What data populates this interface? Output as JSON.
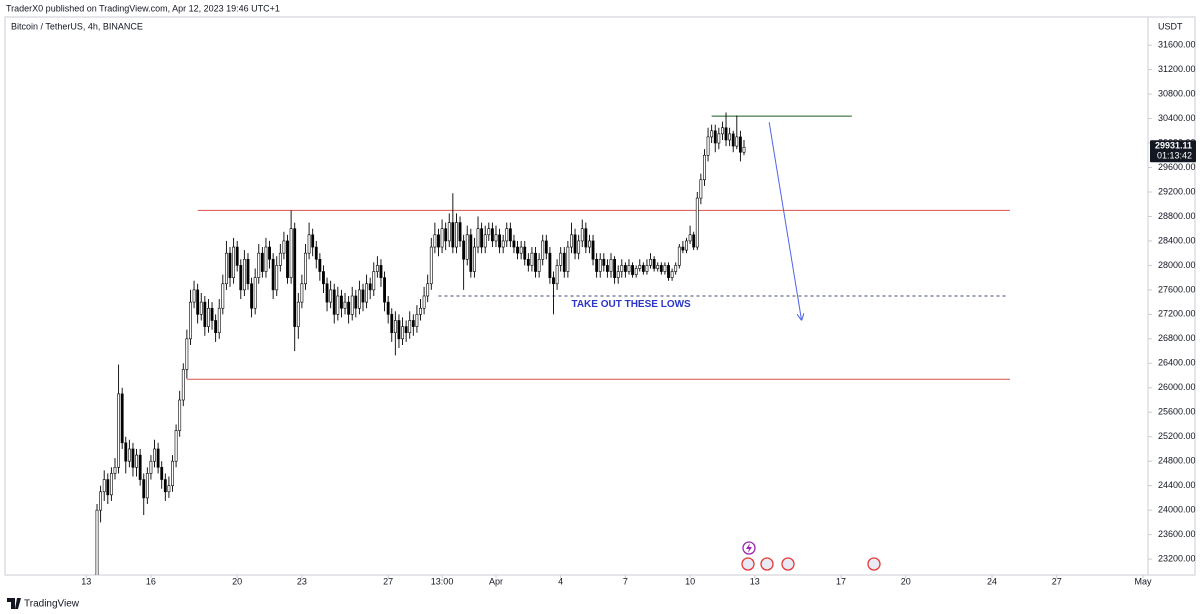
{
  "publisher": "TraderX0 published on TradingView.com, Apr 12, 2023 19:46 UTC+1",
  "brand": "TradingView",
  "chart_data": {
    "type": "candlestick",
    "title": "Bitcoin / TetherUS, 4h, BINANCE",
    "currency": "USDT",
    "countdown": "01:13:42",
    "up_color": "#ffffff",
    "down_color": "#000000",
    "edge_color": "#000000",
    "grid": false,
    "ylim": [
      22940,
      32060
    ],
    "xlim": [
      -25.6,
      292.4
    ],
    "yticks": [
      {
        "value": 23200,
        "label": "23200.00"
      },
      {
        "value": 23600,
        "label": "23600.00"
      },
      {
        "value": 24000,
        "label": "24000.00"
      },
      {
        "value": 24400,
        "label": "24400.00"
      },
      {
        "value": 24800,
        "label": "24800.00"
      },
      {
        "value": 25200,
        "label": "25200.00"
      },
      {
        "value": 25600,
        "label": "25600.00"
      },
      {
        "value": 26000,
        "label": "26000.00"
      },
      {
        "value": 26400,
        "label": "26400.00"
      },
      {
        "value": 26800,
        "label": "26800.00"
      },
      {
        "value": 27200,
        "label": "27200.00"
      },
      {
        "value": 27600,
        "label": "27600.00"
      },
      {
        "value": 28000,
        "label": "28000.00"
      },
      {
        "value": 28400,
        "label": "28400.00"
      },
      {
        "value": 28800,
        "label": "28800.00"
      },
      {
        "value": 29200,
        "label": "29200.00"
      },
      {
        "value": 29600,
        "label": "29600.00"
      },
      {
        "value": 30000,
        "label": "30000.00"
      },
      {
        "value": 30400,
        "label": "30400.00"
      },
      {
        "value": 30800,
        "label": "30800.00"
      },
      {
        "value": 31200,
        "label": "31200.00"
      },
      {
        "value": 31600,
        "label": "31600.00"
      }
    ],
    "xticks": [
      {
        "value": -3,
        "label": "13"
      },
      {
        "value": 15,
        "label": "16"
      },
      {
        "value": 39,
        "label": "20"
      },
      {
        "value": 57,
        "label": "23"
      },
      {
        "value": 81,
        "label": "27"
      },
      {
        "value": 96,
        "label": "13:00"
      },
      {
        "value": 111,
        "label": "Apr"
      },
      {
        "value": 129,
        "label": "4"
      },
      {
        "value": 147,
        "label": "7"
      },
      {
        "value": 165,
        "label": "10"
      },
      {
        "value": 183,
        "label": "13"
      },
      {
        "value": 207,
        "label": "17"
      },
      {
        "value": 225,
        "label": "20"
      },
      {
        "value": 249,
        "label": "24"
      },
      {
        "value": 267,
        "label": "27"
      },
      {
        "value": 291,
        "label": "May"
      }
    ],
    "open": [
      22300,
      24000,
      24300,
      24500,
      24250,
      24600,
      24700,
      25900,
      25100,
      24800,
      25000,
      24700,
      24900,
      24500,
      24200,
      24600,
      24800,
      25000,
      24700,
      24500,
      24300,
      24400,
      24800,
      25300,
      25800,
      26300,
      26800,
      27400,
      27600,
      27200,
      27400,
      27000,
      27300,
      27100,
      26900,
      27300,
      27700,
      28200,
      27800,
      28300,
      28000,
      27600,
      28100,
      27700,
      27300,
      27800,
      28200,
      27900,
      28300,
      28100,
      27600,
      28000,
      28200,
      28400,
      27800,
      28600,
      27000,
      27400,
      27700,
      28200,
      28500,
      28300,
      28100,
      27900,
      27700,
      27400,
      27600,
      27200,
      27500,
      27300,
      27400,
      27200,
      27500,
      27300,
      27600,
      27400,
      27700,
      27600,
      27900,
      28000,
      27800,
      27400,
      27200,
      26900,
      27100,
      26800,
      27000,
      26900,
      27100,
      27000,
      27200,
      27300,
      27500,
      27700,
      28300,
      28500,
      28300,
      28600,
      28400,
      28700,
      28300,
      28700,
      28400,
      28100,
      28500,
      27900,
      28300,
      28600,
      28300,
      28500,
      28600,
      28400,
      28500,
      28300,
      28400,
      28600,
      28400,
      28300,
      28200,
      28300,
      28100,
      28000,
      28200,
      27900,
      28100,
      28400,
      28200,
      27800,
      27700,
      28000,
      28200,
      27900,
      28300,
      28500,
      28200,
      28400,
      28600,
      28300,
      28400,
      28100,
      27900,
      28100,
      28000,
      27900,
      28100,
      27800,
      27900,
      28000,
      27900,
      28000,
      27850,
      27950,
      28000,
      27900,
      28000,
      28100,
      27950,
      28000,
      27900,
      28000,
      27800,
      27900,
      28000,
      28300,
      28250,
      28400,
      28500,
      28300,
      29100,
      29400,
      29800,
      30100,
      30200,
      30000,
      30150,
      30250,
      30050,
      30150,
      29950,
      30100,
      29850
    ],
    "high": [
      24100,
      24400,
      24650,
      24600,
      24700,
      24850,
      26380,
      26000,
      25200,
      25150,
      25100,
      25000,
      25000,
      24600,
      24700,
      24900,
      25150,
      25100,
      24800,
      24600,
      24550,
      24900,
      25400,
      25950,
      26400,
      26950,
      27600,
      27750,
      27700,
      27550,
      27500,
      27450,
      27400,
      27200,
      27450,
      27850,
      28400,
      28300,
      28450,
      28400,
      28100,
      28250,
      28200,
      27800,
      27950,
      28350,
      28300,
      28450,
      28400,
      28200,
      28150,
      28350,
      28550,
      28500,
      28900,
      28700,
      27550,
      27850,
      28350,
      28700,
      28600,
      28400,
      28200,
      28000,
      27800,
      27750,
      27700,
      27650,
      27600,
      27550,
      27500,
      27650,
      27600,
      27750,
      27700,
      27850,
      27800,
      28050,
      28150,
      28100,
      27900,
      27500,
      27300,
      27250,
      27200,
      27150,
      27100,
      27250,
      27200,
      27350,
      27450,
      27650,
      27850,
      28450,
      28700,
      28600,
      28750,
      28700,
      28850,
      29180,
      28850,
      28800,
      28500,
      28650,
      28600,
      28450,
      28800,
      28700,
      28650,
      28700,
      28700,
      28650,
      28600,
      28500,
      28700,
      28700,
      28500,
      28400,
      28400,
      28400,
      28200,
      28300,
      28300,
      28200,
      28500,
      28500,
      28300,
      27900,
      28100,
      28300,
      28300,
      28400,
      28700,
      28600,
      28500,
      28750,
      28700,
      28500,
      28500,
      28200,
      28200,
      28200,
      28100,
      28200,
      28150,
      28000,
      28100,
      28050,
      28100,
      28050,
      28000,
      28100,
      28050,
      28100,
      28200,
      28150,
      28050,
      28050,
      28050,
      28050,
      27950,
      28050,
      28350,
      28400,
      28450,
      28650,
      28550,
      29200,
      29500,
      29900,
      30250,
      30300,
      30300,
      30250,
      30350,
      30500,
      30250,
      30200,
      30450,
      30200,
      30050
    ],
    "low": [
      22000,
      23800,
      24150,
      24100,
      24150,
      24500,
      24600,
      25000,
      24600,
      24700,
      24550,
      24550,
      24400,
      23920,
      24100,
      24500,
      24700,
      24600,
      24350,
      24150,
      24200,
      24300,
      24700,
      25200,
      25700,
      26150,
      26700,
      27300,
      27050,
      27100,
      26850,
      26900,
      26950,
      26750,
      26800,
      27200,
      27600,
      27650,
      27700,
      27900,
      27450,
      27500,
      27600,
      27150,
      27200,
      27700,
      27800,
      27800,
      27950,
      27450,
      27500,
      27900,
      28100,
      27700,
      27700,
      26600,
      26800,
      27300,
      27600,
      28100,
      28150,
      27950,
      27750,
      27550,
      27250,
      27300,
      27050,
      27100,
      27150,
      27200,
      27050,
      27100,
      27150,
      27200,
      27250,
      27300,
      27450,
      27500,
      27800,
      27650,
      27250,
      27050,
      26750,
      26530,
      26650,
      26700,
      26750,
      26800,
      26850,
      26900,
      27100,
      27200,
      27400,
      27600,
      28200,
      28150,
      28200,
      28250,
      28300,
      28200,
      28200,
      28300,
      27600,
      28000,
      27800,
      27800,
      28200,
      28200,
      28200,
      28400,
      28300,
      28300,
      28200,
      28200,
      28300,
      28300,
      28200,
      28100,
      28100,
      28000,
      27900,
      27900,
      27800,
      27800,
      28000,
      28100,
      27700,
      27200,
      27600,
      27900,
      27800,
      27800,
      28200,
      28100,
      28100,
      28300,
      28200,
      28200,
      28000,
      27800,
      27800,
      27900,
      27800,
      27800,
      27700,
      27700,
      27800,
      27800,
      27850,
      27800,
      27800,
      27900,
      27850,
      27850,
      27950,
      27900,
      27900,
      27850,
      27850,
      27750,
      27750,
      27850,
      27950,
      28200,
      28200,
      28350,
      28250,
      28250,
      29000,
      29300,
      29700,
      30000,
      29850,
      29900,
      30050,
      29950,
      29950,
      29850,
      29900,
      29700,
      29800
    ],
    "close": [
      24000,
      24300,
      24500,
      24250,
      24600,
      24700,
      25900,
      25100,
      24800,
      25000,
      24700,
      24900,
      24500,
      24200,
      24600,
      24800,
      25000,
      24700,
      24500,
      24300,
      24400,
      24800,
      25300,
      25800,
      26300,
      26800,
      27400,
      27600,
      27200,
      27400,
      27000,
      27300,
      27100,
      26900,
      27300,
      27700,
      28200,
      27800,
      28300,
      28000,
      27600,
      28100,
      27700,
      27300,
      27800,
      28200,
      27900,
      28300,
      28100,
      27600,
      28000,
      28200,
      28400,
      27800,
      28600,
      27000,
      27400,
      27700,
      28200,
      28500,
      28300,
      28100,
      27900,
      27700,
      27400,
      27600,
      27200,
      27500,
      27300,
      27400,
      27200,
      27500,
      27300,
      27600,
      27400,
      27700,
      27600,
      27900,
      28000,
      27800,
      27400,
      27200,
      26900,
      27100,
      26800,
      27000,
      26900,
      27100,
      27000,
      27200,
      27300,
      27500,
      27700,
      28300,
      28500,
      28300,
      28600,
      28400,
      28700,
      28300,
      28700,
      28400,
      28100,
      28500,
      27900,
      28300,
      28600,
      28300,
      28500,
      28600,
      28400,
      28500,
      28300,
      28400,
      28600,
      28400,
      28300,
      28200,
      28300,
      28100,
      28000,
      28200,
      27900,
      28100,
      28400,
      28200,
      27800,
      27700,
      28000,
      28200,
      27900,
      28300,
      28500,
      28200,
      28400,
      28600,
      28300,
      28400,
      28100,
      27900,
      28100,
      28000,
      27900,
      28100,
      27800,
      27900,
      28000,
      27900,
      28000,
      27850,
      27950,
      28000,
      27900,
      28000,
      28100,
      27950,
      28000,
      27900,
      28000,
      27800,
      27900,
      28000,
      28300,
      28250,
      28400,
      28500,
      28300,
      29100,
      29400,
      29800,
      30100,
      30200,
      30000,
      30150,
      30250,
      30050,
      30150,
      29950,
      30100,
      29850,
      29931.11
    ],
    "levels": [
      {
        "value": 28900,
        "from": 28,
        "to": 254,
        "color": "#d9534f",
        "style": "solid"
      },
      {
        "value": 26140,
        "from": 25,
        "to": 254,
        "color": "#d9534f",
        "style": "solid"
      },
      {
        "value": 30440,
        "from": 171,
        "to": 210,
        "color": "#1b5e20",
        "style": "solid"
      },
      {
        "value": 27500,
        "from": 95,
        "to": 253,
        "color": "#3a4a6b",
        "style": "dashed"
      }
    ],
    "arrow": {
      "x1": 187,
      "y1": 30340,
      "x2": 196,
      "y2": 27110,
      "color": "#4f63e8"
    },
    "annotation": {
      "text": "TAKE OUT THESE LOWS",
      "x": 132,
      "y": 27360,
      "color": "#2b35c8"
    }
  }
}
